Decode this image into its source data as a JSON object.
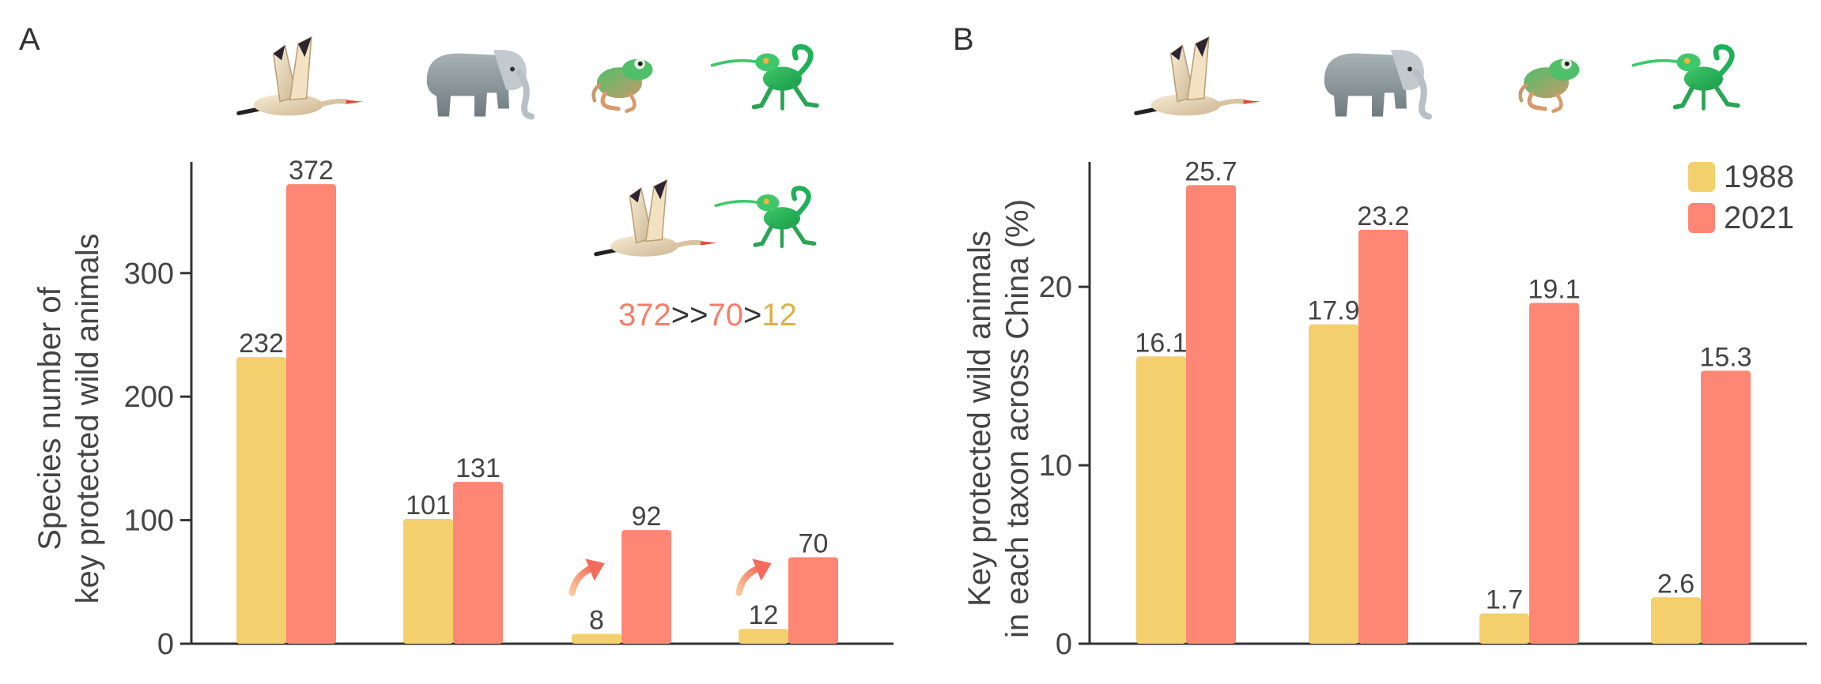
{
  "colors": {
    "c1988": "#f3d06d",
    "c2021": "#fd8674",
    "axis": "#333333",
    "text": "#444444",
    "ann_high": "#f47e6c",
    "ann_low": "#d9b24a"
  },
  "icons": [
    "crane-icon",
    "elephant-icon",
    "frog-icon",
    "lizard-icon"
  ],
  "annotation": {
    "v1": "372",
    "op1": ">>",
    "v2": "70",
    "op2": ">",
    "v3": "12",
    "icons": [
      "crane-icon",
      "lizard-icon"
    ]
  },
  "chart_data": [
    {
      "type": "bar",
      "panel": "A",
      "ylabel_lines": [
        "Species number of",
        "key protected wild animals"
      ],
      "ylim": [
        0,
        390
      ],
      "yticks": [
        0,
        100,
        200,
        300
      ],
      "series": [
        {
          "name": "1988",
          "values": [
            232,
            101,
            8,
            12
          ],
          "labels": [
            "232",
            "101",
            "8",
            "12"
          ]
        },
        {
          "name": "2021",
          "values": [
            372,
            131,
            92,
            70
          ],
          "labels": [
            "372",
            "131",
            "92",
            "70"
          ]
        }
      ],
      "increase_arrows_on_groups": [
        2,
        3
      ]
    },
    {
      "type": "bar",
      "panel": "B",
      "ylabel_lines": [
        "Key protected wild animals",
        "in each taxon across China (%)"
      ],
      "ylim": [
        0,
        27
      ],
      "yticks": [
        0,
        10,
        20
      ],
      "series": [
        {
          "name": "1988",
          "values": [
            16.1,
            17.9,
            1.7,
            2.6
          ],
          "labels": [
            "16.1",
            "17.9",
            "1.7",
            "2.6"
          ]
        },
        {
          "name": "2021",
          "values": [
            25.7,
            23.2,
            19.1,
            15.3
          ],
          "labels": [
            "25.7",
            "23.2",
            "19.1",
            "15.3"
          ]
        }
      ],
      "legend": {
        "placement": "top-right",
        "entries": [
          "1988",
          "2021"
        ]
      }
    }
  ]
}
